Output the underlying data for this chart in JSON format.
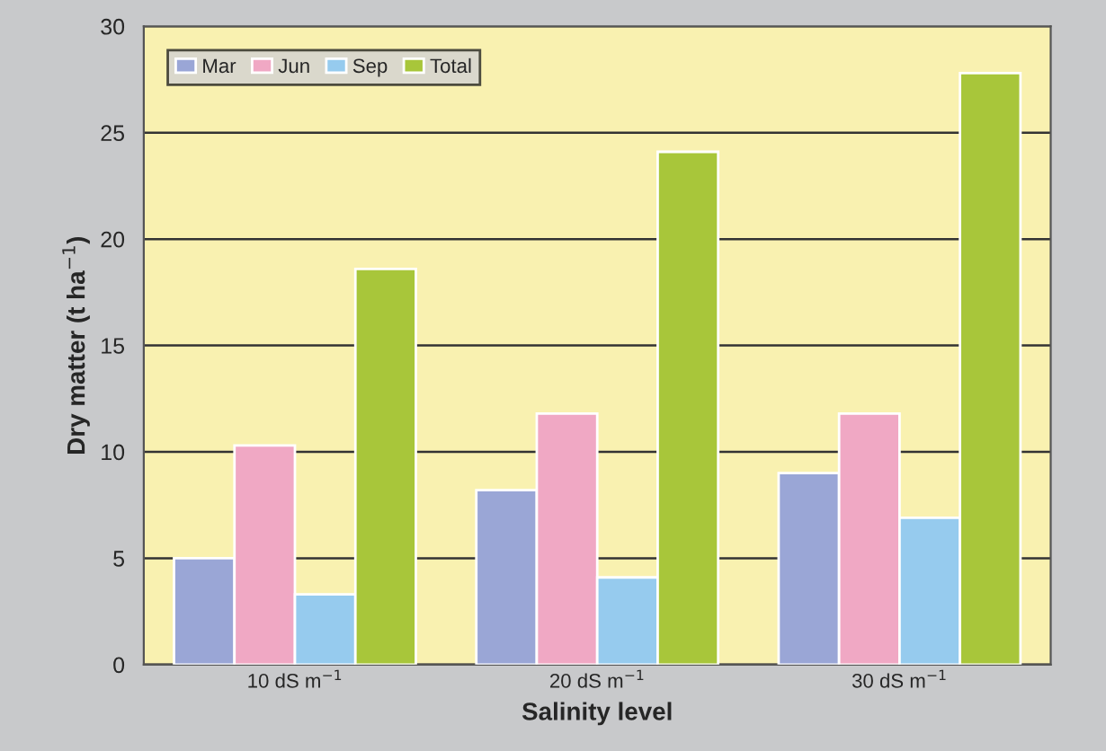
{
  "chart_data": {
    "type": "bar",
    "xlabel": "Salinity level",
    "ylabel": "Dry matter (t ha$^{−1}$)",
    "categories": [
      "10 dS m$^{−1}$",
      "20 dS m$^{−1}$",
      "30 dS m$^{−1}$"
    ],
    "series": [
      {
        "name": "Mar",
        "color": "#9aa6d6",
        "values": [
          5.0,
          8.2,
          9.0
        ]
      },
      {
        "name": "Jun",
        "color": "#f0a8c4",
        "values": [
          10.3,
          11.8,
          11.8
        ]
      },
      {
        "name": "Sep",
        "color": "#96cbee",
        "values": [
          3.3,
          4.1,
          6.9
        ]
      },
      {
        "name": "Total",
        "color": "#a8c63a",
        "values": [
          18.6,
          24.1,
          27.8
        ]
      }
    ],
    "ylim": [
      0,
      30
    ],
    "yticks": [
      0,
      5,
      10,
      15,
      20,
      25,
      30
    ],
    "grid": "y",
    "legend": "top left"
  }
}
